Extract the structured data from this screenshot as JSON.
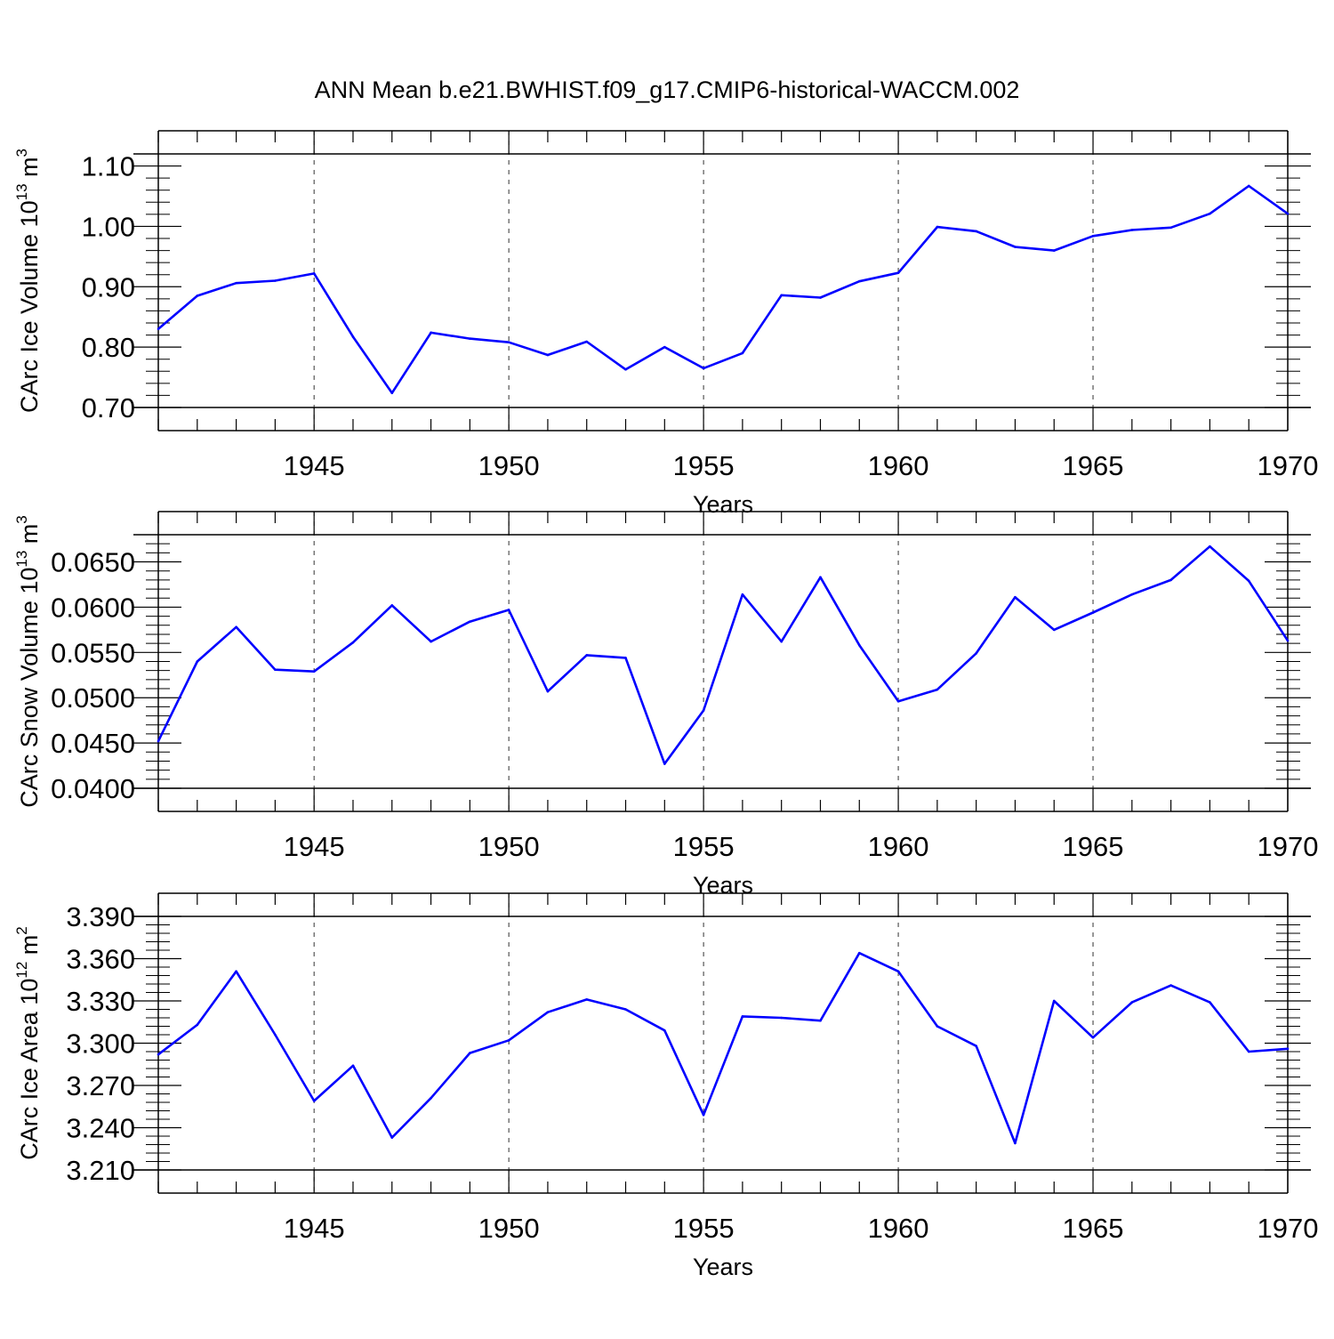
{
  "title": "ANN Mean b.e21.BWHIST.f09_g17.CMIP6-historical-WACCM.002",
  "colors": {
    "line": "#0000ff",
    "axis": "#000000",
    "grid": "#000000"
  },
  "chart_data": [
    {
      "type": "line",
      "ylabel": "CArc Ice Volume",
      "ylabel_power": "10",
      "ylabel_exp": "13",
      "ylabel_unit": "m",
      "ylabel_unit_exp": "3",
      "xlabel": "Years",
      "xlim": [
        1941,
        1970
      ],
      "ylim": [
        0.7,
        1.12
      ],
      "yticks": [
        "1.10",
        "1.00",
        "0.90",
        "0.80",
        "0.70"
      ],
      "ytick_values": [
        1.1,
        1.0,
        0.9,
        0.8,
        0.7
      ],
      "xticks": [
        "1945",
        "1950",
        "1955",
        "1960",
        "1965",
        "1970"
      ],
      "xtick_values": [
        1945,
        1950,
        1955,
        1960,
        1965,
        1970
      ],
      "x": [
        1941,
        1942,
        1943,
        1944,
        1945,
        1946,
        1947,
        1948,
        1949,
        1950,
        1951,
        1952,
        1953,
        1954,
        1955,
        1956,
        1957,
        1958,
        1959,
        1960,
        1961,
        1962,
        1963,
        1964,
        1965,
        1966,
        1967,
        1968,
        1969,
        1970
      ],
      "values": [
        0.83,
        0.885,
        0.906,
        0.91,
        0.922,
        0.817,
        0.724,
        0.824,
        0.814,
        0.808,
        0.787,
        0.809,
        0.763,
        0.8,
        0.765,
        0.79,
        0.886,
        0.882,
        0.909,
        0.923,
        0.999,
        0.992,
        0.966,
        0.96,
        0.984,
        0.994,
        0.998,
        1.021,
        1.067,
        1.021
      ]
    },
    {
      "type": "line",
      "ylabel": "CArc Snow Volume",
      "ylabel_power": "10",
      "ylabel_exp": "13",
      "ylabel_unit": "m",
      "ylabel_unit_exp": "3",
      "xlabel": "Years",
      "xlim": [
        1941,
        1970
      ],
      "ylim": [
        0.04,
        0.068
      ],
      "yticks": [
        "0.0650",
        "0.0600",
        "0.0550",
        "0.0500",
        "0.0450",
        "0.0400"
      ],
      "ytick_values": [
        0.065,
        0.06,
        0.055,
        0.05,
        0.045,
        0.04
      ],
      "xticks": [
        "1945",
        "1950",
        "1955",
        "1960",
        "1965",
        "1970"
      ],
      "xtick_values": [
        1945,
        1950,
        1955,
        1960,
        1965,
        1970
      ],
      "x": [
        1941,
        1942,
        1943,
        1944,
        1945,
        1946,
        1947,
        1948,
        1949,
        1950,
        1951,
        1952,
        1953,
        1954,
        1955,
        1956,
        1957,
        1958,
        1959,
        1960,
        1961,
        1962,
        1963,
        1964,
        1965,
        1966,
        1967,
        1968,
        1969,
        1970
      ],
      "values": [
        0.0452,
        0.054,
        0.0578,
        0.0531,
        0.0529,
        0.0561,
        0.0602,
        0.0562,
        0.0584,
        0.0597,
        0.0507,
        0.0547,
        0.0544,
        0.0427,
        0.0486,
        0.0614,
        0.0562,
        0.0633,
        0.0558,
        0.0496,
        0.0509,
        0.0549,
        0.0611,
        0.0575,
        0.0594,
        0.0614,
        0.063,
        0.0667,
        0.0629,
        0.0563
      ]
    },
    {
      "type": "line",
      "ylabel": "CArc Ice Area",
      "ylabel_power": "10",
      "ylabel_exp": "12",
      "ylabel_unit": "m",
      "ylabel_unit_exp": "2",
      "xlabel": "Years",
      "xlim": [
        1941,
        1970
      ],
      "ylim": [
        3.21,
        3.39
      ],
      "yticks": [
        "3.390",
        "3.360",
        "3.330",
        "3.300",
        "3.270",
        "3.240",
        "3.210"
      ],
      "ytick_values": [
        3.39,
        3.36,
        3.33,
        3.3,
        3.27,
        3.24,
        3.21
      ],
      "xticks": [
        "1945",
        "1950",
        "1955",
        "1960",
        "1965",
        "1970"
      ],
      "xtick_values": [
        1945,
        1950,
        1955,
        1960,
        1965,
        1970
      ],
      "x": [
        1941,
        1942,
        1943,
        1944,
        1945,
        1946,
        1947,
        1948,
        1949,
        1950,
        1951,
        1952,
        1953,
        1954,
        1955,
        1956,
        1957,
        1958,
        1959,
        1960,
        1961,
        1962,
        1963,
        1964,
        1965,
        1966,
        1967,
        1968,
        1969,
        1970
      ],
      "values": [
        3.292,
        3.313,
        3.351,
        3.306,
        3.259,
        3.284,
        3.233,
        3.261,
        3.293,
        3.302,
        3.322,
        3.331,
        3.324,
        3.309,
        3.249,
        3.319,
        3.318,
        3.316,
        3.364,
        3.351,
        3.312,
        3.298,
        3.229,
        3.33,
        3.304,
        3.329,
        3.341,
        3.329,
        3.294,
        3.296
      ]
    }
  ]
}
